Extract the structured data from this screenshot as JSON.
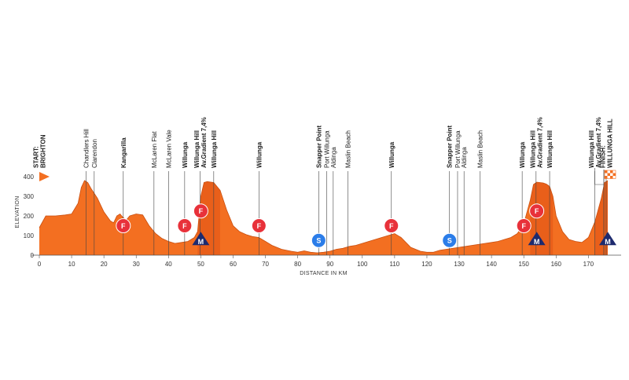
{
  "chart_data": {
    "type": "area",
    "xlabel": "DISTANCE IN KM",
    "ylabel": "ELEVATION",
    "xlim": [
      0,
      180
    ],
    "ylim": [
      0,
      500
    ],
    "xticks": [
      0,
      10,
      20,
      30,
      40,
      50,
      60,
      70,
      80,
      90,
      100,
      110,
      120,
      130,
      140,
      150,
      160,
      170
    ],
    "yticks": [
      0,
      100,
      200,
      300,
      400
    ],
    "grid": false,
    "fill_colors": {
      "base": "#f36f21",
      "climb": "#e85d1a"
    },
    "profile": {
      "x": [
        0,
        2,
        5,
        8,
        10,
        12,
        13,
        14,
        15,
        16,
        18,
        20,
        22,
        23,
        24,
        25,
        26,
        27,
        28,
        30,
        32,
        34,
        36,
        38,
        40,
        42,
        44,
        46,
        48,
        49,
        50,
        51,
        52,
        54,
        56,
        58,
        60,
        62,
        64,
        66,
        68,
        70,
        72,
        75,
        78,
        80,
        82,
        84,
        86,
        88,
        90,
        92,
        94,
        96,
        98,
        100,
        102,
        104,
        106,
        108,
        110,
        112,
        115,
        118,
        120,
        122,
        124,
        126,
        128,
        130,
        132,
        134,
        136,
        138,
        140,
        142,
        144,
        146,
        148,
        150,
        152,
        153,
        154,
        155,
        156,
        157,
        158,
        159,
        160,
        162,
        164,
        166,
        168,
        170,
        172,
        173,
        174,
        175,
        176
      ],
      "y": [
        140,
        200,
        200,
        205,
        210,
        265,
        345,
        380,
        370,
        340,
        290,
        220,
        175,
        165,
        200,
        210,
        190,
        180,
        200,
        210,
        205,
        150,
        110,
        85,
        70,
        60,
        65,
        70,
        90,
        120,
        300,
        370,
        375,
        370,
        330,
        230,
        150,
        120,
        105,
        95,
        90,
        70,
        50,
        30,
        20,
        15,
        22,
        15,
        12,
        15,
        20,
        30,
        35,
        45,
        50,
        60,
        70,
        80,
        90,
        100,
        110,
        90,
        40,
        20,
        15,
        15,
        25,
        30,
        35,
        40,
        45,
        50,
        55,
        60,
        65,
        70,
        80,
        90,
        110,
        160,
        280,
        360,
        372,
        370,
        368,
        362,
        350,
        300,
        200,
        120,
        80,
        70,
        65,
        90,
        170,
        230,
        290,
        370,
        380
      ]
    },
    "places": [
      {
        "km": 0,
        "label": "START:\nBRIGHTON",
        "bold": true
      },
      {
        "km": 14.5,
        "label": "Chandlers Hill",
        "bold": false
      },
      {
        "km": 17,
        "label": "Clarendon",
        "bold": false
      },
      {
        "km": 26,
        "label": "Kangarilla",
        "bold": true
      },
      {
        "km": 35.5,
        "label": "McLaren Flat",
        "bold": false
      },
      {
        "km": 40,
        "label": "McLaren Vale",
        "bold": false
      },
      {
        "km": 45,
        "label": "Willunga",
        "bold": true
      },
      {
        "km": 49.8,
        "label": "Willunga Hill\nAv.Gradient 7,4%",
        "bold": true
      },
      {
        "km": 54,
        "label": "Willunga Hill",
        "bold": true
      },
      {
        "km": 68,
        "label": "Willunga",
        "bold": true
      },
      {
        "km": 86.5,
        "label": "Snapper Point",
        "bold": true
      },
      {
        "km": 89,
        "label": "Port Willunga",
        "bold": false
      },
      {
        "km": 91,
        "label": "Aldinga",
        "bold": false
      },
      {
        "km": 95.5,
        "label": "Maslin Beach",
        "bold": false
      },
      {
        "km": 109,
        "label": "Willunga",
        "bold": true
      },
      {
        "km": 127,
        "label": "Snapper Point",
        "bold": true
      },
      {
        "km": 129.5,
        "label": "Port Willunga",
        "bold": false
      },
      {
        "km": 131.5,
        "label": "Aldinga",
        "bold": false
      },
      {
        "km": 136.5,
        "label": "Maslin Beach",
        "bold": false
      },
      {
        "km": 149.5,
        "label": "Willunga",
        "bold": true
      },
      {
        "km": 153.8,
        "label": "Willunga Hill\nAv.Gradient 7,4%",
        "bold": true
      },
      {
        "km": 158,
        "label": "Willunga Hill",
        "bold": true
      },
      {
        "km": 172,
        "label": "Willunga Hill\nAv.Gradient 7,4%",
        "bold": true
      },
      {
        "km": 175.5,
        "label": "FINISH:\nWILLUNGA HILL",
        "bold": true
      }
    ],
    "markers": [
      {
        "km": 26,
        "elev": 150,
        "type": "F",
        "letter": "F",
        "color": "#e8313a"
      },
      {
        "km": 45,
        "elev": 150,
        "type": "F",
        "letter": "F",
        "color": "#e8313a"
      },
      {
        "km": 50,
        "elev": 225,
        "type": "F",
        "letter": "F",
        "color": "#e8313a"
      },
      {
        "km": 68,
        "elev": 150,
        "type": "F",
        "letter": "F",
        "color": "#e8313a"
      },
      {
        "km": 109,
        "elev": 150,
        "type": "F",
        "letter": "F",
        "color": "#e8313a"
      },
      {
        "km": 150,
        "elev": 150,
        "type": "F",
        "letter": "F",
        "color": "#e8313a"
      },
      {
        "km": 154,
        "elev": 225,
        "type": "F",
        "letter": "F",
        "color": "#e8313a"
      },
      {
        "km": 86.5,
        "elev": 75,
        "type": "S",
        "letter": "S",
        "color": "#2b7de9"
      },
      {
        "km": 127,
        "elev": 75,
        "type": "S",
        "letter": "S",
        "color": "#2b7de9"
      },
      {
        "km": 50,
        "elev": 75,
        "type": "M",
        "letter": "M",
        "color": "#1d2a6e"
      },
      {
        "km": 154,
        "elev": 75,
        "type": "M",
        "letter": "M",
        "color": "#1d2a6e"
      },
      {
        "km": 176,
        "elev": 75,
        "type": "M",
        "letter": "M",
        "color": "#1d2a6e"
      }
    ],
    "start_flag_color": "#f36f21",
    "finish_flag_colors": [
      "#f36f21",
      "#ffffff"
    ]
  }
}
